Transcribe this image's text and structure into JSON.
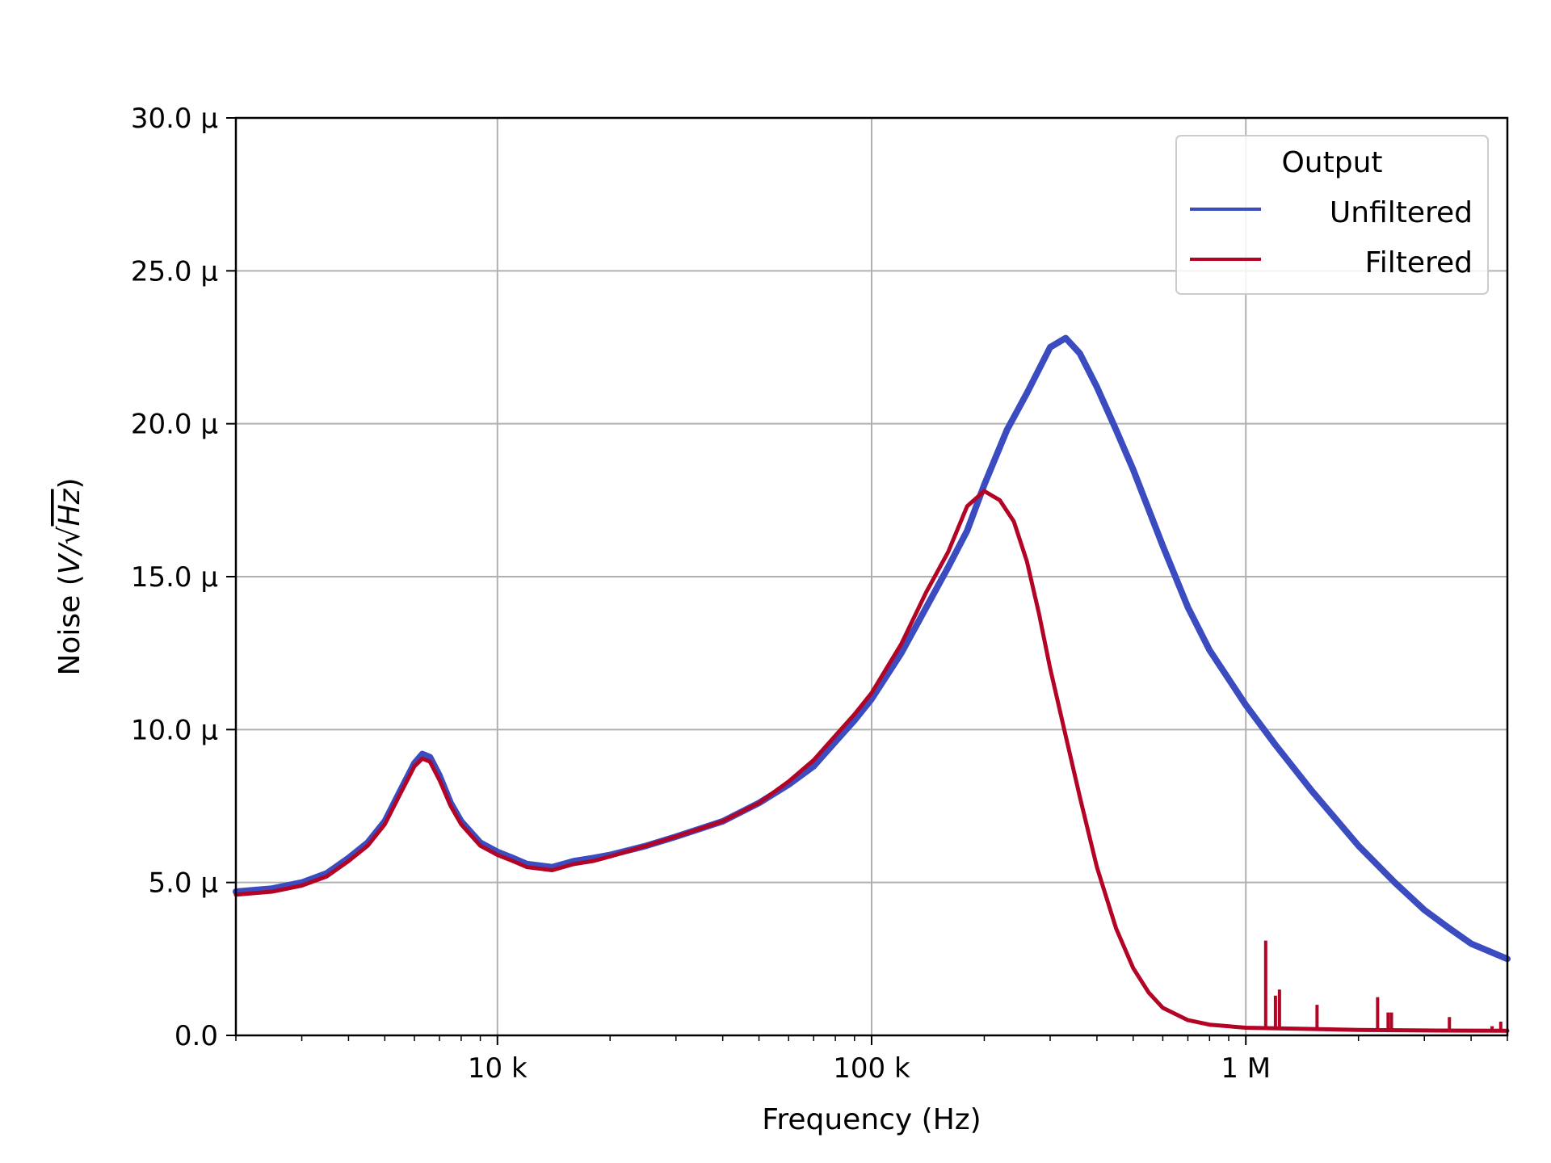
{
  "chart_data": {
    "type": "line",
    "xscale": "log",
    "xlim": [
      2000,
      5000000
    ],
    "ylim": [
      0,
      3e-05
    ],
    "xlabel": "Frequency (Hz)",
    "ylabel_text": "Noise (",
    "ylabel_unit_v": "V/",
    "ylabel_unit_hz": "Hz",
    "ylabel_close": ")",
    "xticks": [
      {
        "value": 10000,
        "label": "10 k"
      },
      {
        "value": 100000,
        "label": "100 k"
      },
      {
        "value": 1000000,
        "label": "1 M"
      }
    ],
    "yticks": [
      {
        "value": 0,
        "label": "0.0"
      },
      {
        "value": 5e-06,
        "label": "5.0 µ"
      },
      {
        "value": 1e-05,
        "label": "10.0 µ"
      },
      {
        "value": 1.5e-05,
        "label": "15.0 µ"
      },
      {
        "value": 2e-05,
        "label": "20.0 µ"
      },
      {
        "value": 2.5e-05,
        "label": "25.0 µ"
      },
      {
        "value": 3e-05,
        "label": "30.0 µ"
      }
    ],
    "grid": true,
    "legend": {
      "title": "Output",
      "position": "top-right"
    },
    "series": [
      {
        "name": "Unfiltered",
        "color": "#3b4cc0",
        "points": [
          [
            2000,
            4.7e-06
          ],
          [
            2500,
            4.8e-06
          ],
          [
            3000,
            5e-06
          ],
          [
            3500,
            5.3e-06
          ],
          [
            4000,
            5.8e-06
          ],
          [
            4500,
            6.3e-06
          ],
          [
            5000,
            7e-06
          ],
          [
            5500,
            8e-06
          ],
          [
            6000,
            8.9e-06
          ],
          [
            6300,
            9.2e-06
          ],
          [
            6600,
            9.1e-06
          ],
          [
            7000,
            8.5e-06
          ],
          [
            7500,
            7.6e-06
          ],
          [
            8000,
            7e-06
          ],
          [
            9000,
            6.3e-06
          ],
          [
            10000,
            6e-06
          ],
          [
            11000,
            5.8e-06
          ],
          [
            12000,
            5.6e-06
          ],
          [
            13000,
            5.55e-06
          ],
          [
            14000,
            5.5e-06
          ],
          [
            16000,
            5.7e-06
          ],
          [
            18000,
            5.8e-06
          ],
          [
            20000,
            5.9e-06
          ],
          [
            25000,
            6.2e-06
          ],
          [
            30000,
            6.5e-06
          ],
          [
            40000,
            7e-06
          ],
          [
            50000,
            7.6e-06
          ],
          [
            60000,
            8.2e-06
          ],
          [
            70000,
            8.8e-06
          ],
          [
            80000,
            9.6e-06
          ],
          [
            90000,
            1.03e-05
          ],
          [
            100000,
            1.1e-05
          ],
          [
            120000,
            1.25e-05
          ],
          [
            140000,
            1.4e-05
          ],
          [
            160000,
            1.53e-05
          ],
          [
            180000,
            1.65e-05
          ],
          [
            200000,
            1.8e-05
          ],
          [
            230000,
            1.98e-05
          ],
          [
            260000,
            2.1e-05
          ],
          [
            300000,
            2.25e-05
          ],
          [
            330000,
            2.28e-05
          ],
          [
            360000,
            2.23e-05
          ],
          [
            400000,
            2.12e-05
          ],
          [
            450000,
            1.98e-05
          ],
          [
            500000,
            1.85e-05
          ],
          [
            600000,
            1.6e-05
          ],
          [
            700000,
            1.4e-05
          ],
          [
            800000,
            1.26e-05
          ],
          [
            1000000,
            1.08e-05
          ],
          [
            1200000,
            9.5e-06
          ],
          [
            1500000,
            8e-06
          ],
          [
            2000000,
            6.2e-06
          ],
          [
            2500000,
            5e-06
          ],
          [
            3000000,
            4.1e-06
          ],
          [
            3500000,
            3.5e-06
          ],
          [
            4000000,
            3e-06
          ],
          [
            5000000,
            2.5e-06
          ]
        ]
      },
      {
        "name": "Filtered",
        "color": "#b40426",
        "points": [
          [
            2000,
            4.6e-06
          ],
          [
            2500,
            4.7e-06
          ],
          [
            3000,
            4.9e-06
          ],
          [
            3500,
            5.2e-06
          ],
          [
            4000,
            5.7e-06
          ],
          [
            4500,
            6.2e-06
          ],
          [
            5000,
            6.9e-06
          ],
          [
            5500,
            7.9e-06
          ],
          [
            6000,
            8.8e-06
          ],
          [
            6300,
            9.05e-06
          ],
          [
            6600,
            8.95e-06
          ],
          [
            7000,
            8.35e-06
          ],
          [
            7500,
            7.5e-06
          ],
          [
            8000,
            6.9e-06
          ],
          [
            9000,
            6.2e-06
          ],
          [
            10000,
            5.9e-06
          ],
          [
            11000,
            5.7e-06
          ],
          [
            12000,
            5.5e-06
          ],
          [
            13000,
            5.45e-06
          ],
          [
            14000,
            5.4e-06
          ],
          [
            16000,
            5.6e-06
          ],
          [
            18000,
            5.7e-06
          ],
          [
            20000,
            5.85e-06
          ],
          [
            25000,
            6.2e-06
          ],
          [
            30000,
            6.5e-06
          ],
          [
            40000,
            7e-06
          ],
          [
            50000,
            7.6e-06
          ],
          [
            60000,
            8.3e-06
          ],
          [
            70000,
            9e-06
          ],
          [
            80000,
            9.8e-06
          ],
          [
            90000,
            1.05e-05
          ],
          [
            100000,
            1.12e-05
          ],
          [
            120000,
            1.28e-05
          ],
          [
            140000,
            1.45e-05
          ],
          [
            160000,
            1.58e-05
          ],
          [
            180000,
            1.73e-05
          ],
          [
            200000,
            1.78e-05
          ],
          [
            220000,
            1.75e-05
          ],
          [
            240000,
            1.68e-05
          ],
          [
            260000,
            1.55e-05
          ],
          [
            280000,
            1.38e-05
          ],
          [
            300000,
            1.2e-05
          ],
          [
            330000,
            9.8e-06
          ],
          [
            360000,
            7.8e-06
          ],
          [
            400000,
            5.5e-06
          ],
          [
            450000,
            3.5e-06
          ],
          [
            500000,
            2.2e-06
          ],
          [
            550000,
            1.4e-06
          ],
          [
            600000,
            9e-07
          ],
          [
            700000,
            5e-07
          ],
          [
            800000,
            3.5e-07
          ],
          [
            1000000,
            2.5e-07
          ],
          [
            2000000,
            1.8e-07
          ],
          [
            3000000,
            1.6e-07
          ],
          [
            5000000,
            1.5e-07
          ]
        ],
        "spikes": [
          [
            1130000,
            3.1e-06
          ],
          [
            1200000,
            1.3e-06
          ],
          [
            1230000,
            1.5e-06
          ],
          [
            1550000,
            1e-06
          ],
          [
            2250000,
            1.25e-06
          ],
          [
            2400000,
            7.5e-07
          ],
          [
            2450000,
            7.5e-07
          ],
          [
            3500000,
            6e-07
          ],
          [
            4550000,
            3e-07
          ],
          [
            4800000,
            4.5e-07
          ]
        ]
      }
    ]
  }
}
